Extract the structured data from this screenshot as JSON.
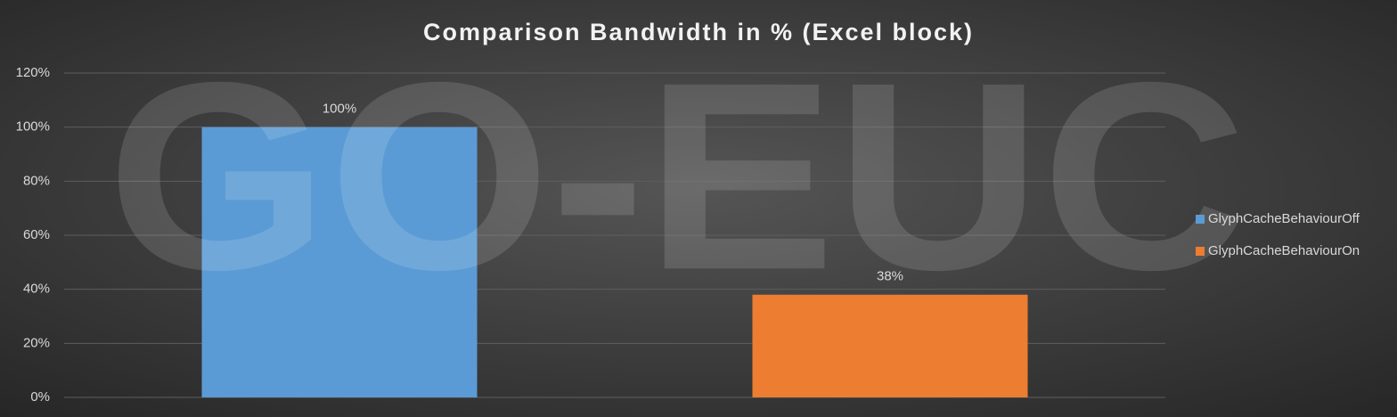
{
  "chart_data": {
    "type": "bar",
    "title": "Comparison Bandwidth in % (Excel block)",
    "watermark": "GO-EUC",
    "categories": [
      null
    ],
    "series": [
      {
        "name": "GlyphCacheBehaviourOff",
        "color": "#5b9bd5",
        "values": [
          100
        ],
        "value_labels": [
          "100%"
        ]
      },
      {
        "name": "GlyphCacheBehaviourOn",
        "color": "#ed7d31",
        "values": [
          38
        ],
        "value_labels": [
          "38%"
        ]
      }
    ],
    "ylim": [
      0,
      120
    ],
    "yticks": [
      {
        "value": 0,
        "label": "0%"
      },
      {
        "value": 20,
        "label": "20%"
      },
      {
        "value": 40,
        "label": "40%"
      },
      {
        "value": 60,
        "label": "60%"
      },
      {
        "value": 80,
        "label": "80%"
      },
      {
        "value": 100,
        "label": "100%"
      },
      {
        "value": 120,
        "label": "120%"
      }
    ],
    "grid": true,
    "legend": "right"
  }
}
